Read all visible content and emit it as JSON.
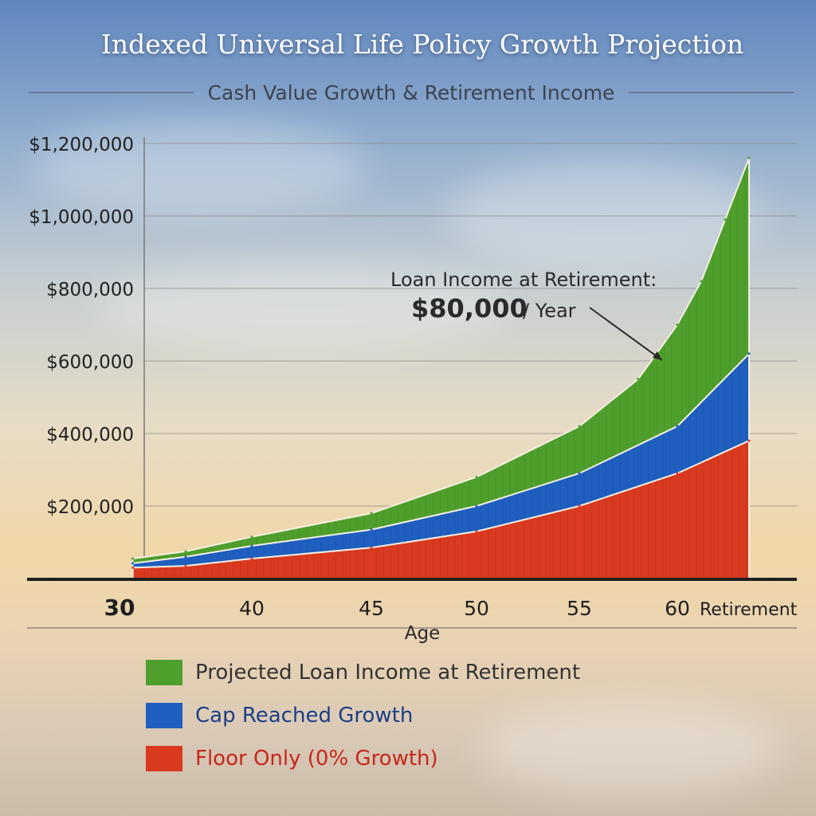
{
  "chart_data": {
    "type": "area",
    "title": "Indexed Universal Life Policy Growth Projection",
    "subtitle": "Cash Value Growth & Retirement Income",
    "xlabel": "Age",
    "ylabel": "",
    "x_ticks": [
      "30",
      "40",
      "45",
      "50",
      "55",
      "60"
    ],
    "x_end_label": "Retirement",
    "y_ticks": [
      "$200,000",
      "$400,000",
      "$600,000",
      "$800,000",
      "$1,000,000",
      "$1,200,000"
    ],
    "ylim": [
      0,
      1200000
    ],
    "grid": true,
    "legend_position": "bottom",
    "series": [
      {
        "name": "Projected Loan Income at Retirement",
        "color": "#4f9f2c",
        "x": [
          31,
          35,
          40,
          45,
          50,
          55,
          58,
          60,
          61,
          62,
          63
        ],
        "values": [
          55000,
          75000,
          115000,
          180000,
          280000,
          420000,
          550000,
          700000,
          820000,
          990000,
          1160000
        ]
      },
      {
        "name": "Cap Reached Growth",
        "color": "#1f5fbf",
        "x": [
          31,
          35,
          40,
          45,
          50,
          55,
          60,
          63
        ],
        "values": [
          42000,
          60000,
          90000,
          135000,
          200000,
          290000,
          420000,
          620000
        ]
      },
      {
        "name": "Floor Only (0% Growth)",
        "color": "#d93a20",
        "x": [
          31,
          35,
          40,
          45,
          50,
          55,
          60,
          63
        ],
        "values": [
          30000,
          35000,
          55000,
          85000,
          130000,
          200000,
          290000,
          380000
        ]
      }
    ],
    "annotation": {
      "label": "Loan Income at Retirement:",
      "amount": "$80,000",
      "unit": "/ Year",
      "target_x": 58,
      "target_y": 620000
    }
  }
}
